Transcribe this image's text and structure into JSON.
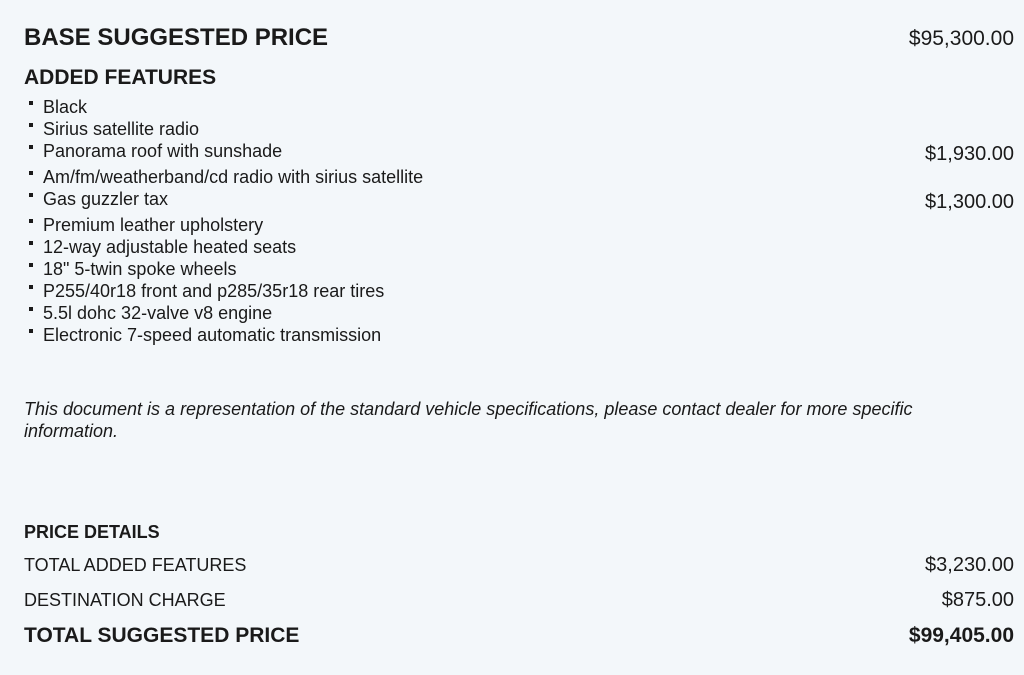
{
  "base": {
    "label": "BASE SUGGESTED PRICE",
    "price": "$95,300.00"
  },
  "added": {
    "title": "ADDED FEATURES",
    "items": [
      {
        "label": "Black",
        "price": ""
      },
      {
        "label": "Sirius satellite radio",
        "price": ""
      },
      {
        "label": "Panorama roof with sunshade",
        "price": "$1,930.00"
      },
      {
        "label": "Am/fm/weatherband/cd radio with sirius satellite",
        "price": ""
      },
      {
        "label": "Gas guzzler tax",
        "price": "$1,300.00"
      },
      {
        "label": "Premium leather upholstery",
        "price": ""
      },
      {
        "label": "12-way adjustable heated seats",
        "price": ""
      },
      {
        "label": "18\" 5-twin spoke wheels",
        "price": ""
      },
      {
        "label": "P255/40r18 front and p285/35r18 rear tires",
        "price": ""
      },
      {
        "label": "5.5l dohc 32-valve v8 engine",
        "price": ""
      },
      {
        "label": "Electronic 7-speed automatic transmission",
        "price": ""
      }
    ]
  },
  "disclaimer": "This document is a representation of the standard vehicle specifications, please contact dealer for more specific information.",
  "price_details": {
    "title": "PRICE DETAILS",
    "total_added": {
      "label": "TOTAL ADDED FEATURES",
      "price": "$3,230.00"
    },
    "destination": {
      "label": "DESTINATION CHARGE",
      "price": "$875.00"
    },
    "total": {
      "label": "TOTAL SUGGESTED PRICE",
      "price": "$99,405.00"
    }
  }
}
